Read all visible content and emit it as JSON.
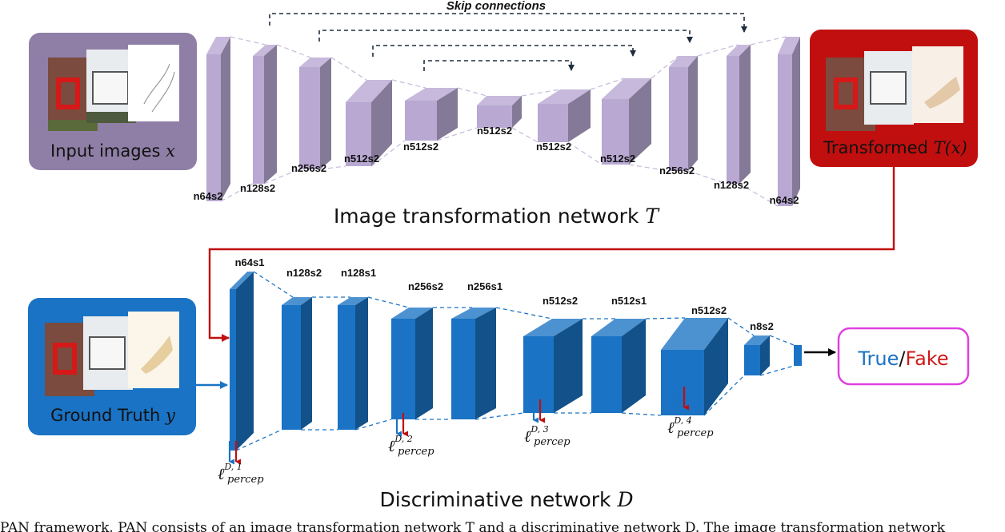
{
  "diagram": {
    "skip_label": "Skip connections",
    "input_box": {
      "label": "Input images",
      "var": "x",
      "color": "#8f7fa6"
    },
    "transformed_box": {
      "label": "Transformed",
      "var": "T(x)",
      "color": "#c10f0f"
    },
    "ground_truth_box": {
      "label": "Ground Truth",
      "var": "y",
      "color": "#1a73c4"
    },
    "result_box": {
      "true_text": "True",
      "slash": "/",
      "fake_text": "Fake",
      "border_color": "#e040e0",
      "true_color": "#1a73c4",
      "fake_color": "#d11a1a"
    },
    "network_t": {
      "title": "Image transformation network",
      "var": "T",
      "face_color": "#b8a8d2",
      "layers": [
        "n64s2",
        "n128s2",
        "n256s2",
        "n512s2",
        "n512s2",
        "n512s2",
        "n512s2",
        "n512s2",
        "n256s2",
        "n128s2",
        "n64s2"
      ]
    },
    "network_d": {
      "title": "Discriminative network",
      "var": "D",
      "face_color": "#1a73c4",
      "layers": [
        "n64s1",
        "n128s2",
        "n128s1",
        "n256s2",
        "n256s1",
        "n512s2",
        "n512s1",
        "n512s2",
        "n8s2"
      ]
    },
    "losses": [
      {
        "base": "ℓ",
        "sup": "D, 1",
        "sub": "percep"
      },
      {
        "base": "ℓ",
        "sup": "D, 2",
        "sub": "percep"
      },
      {
        "base": "ℓ",
        "sup": "D, 3",
        "sub": "percep"
      },
      {
        "base": "ℓ",
        "sup": "D, 4",
        "sub": "percep"
      }
    ],
    "caption": "PAN framework. PAN consists of an image transformation network T and a discriminative network D. The image transformation network"
  }
}
